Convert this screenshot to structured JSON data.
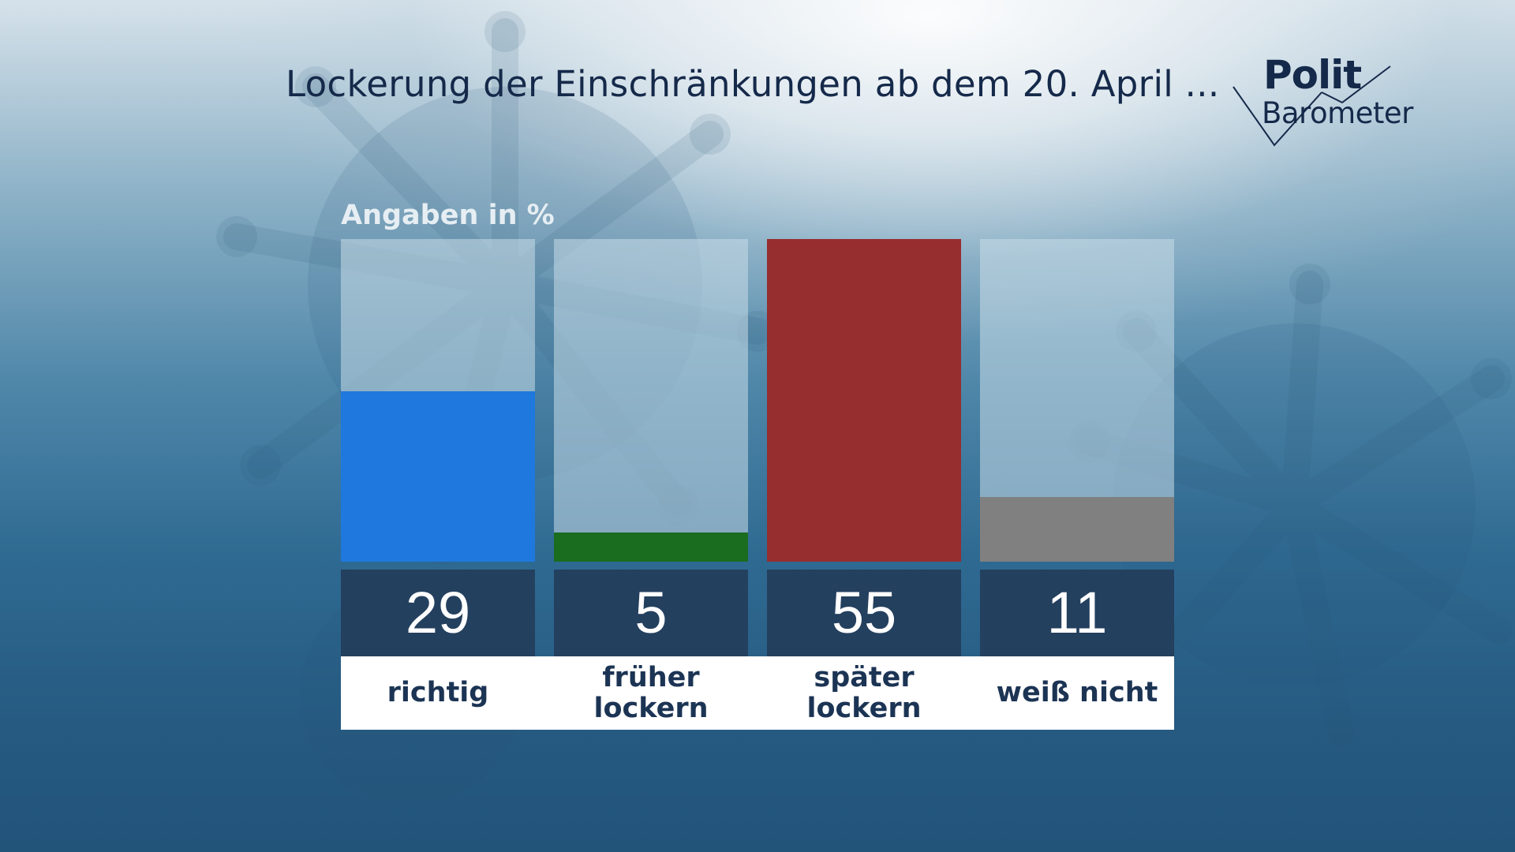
{
  "title": "Lockerung der Einschränkungen ab dem 20. April ...",
  "logo": {
    "line1": "Polit",
    "line2": "Barometer"
  },
  "colors": {
    "richtig": "#1f78dd",
    "frueher": "#1a6c1f",
    "spaeter": "#962d2f",
    "weiss_nicht": "#808080",
    "value_box": "#24405f",
    "title_text": "#15294a"
  },
  "chart_data": {
    "type": "bar",
    "ylabel": "Angaben in %",
    "ylim": [
      0,
      55
    ],
    "grid": false,
    "categories": [
      "richtig",
      "früher\nlockern",
      "später\nlockern",
      "weiß nicht"
    ],
    "values": [
      29,
      5,
      55,
      11
    ],
    "value_labels": [
      "29",
      "5",
      "55",
      "11"
    ],
    "bar_colors": [
      "#1f78dd",
      "#1a6c1f",
      "#962d2f",
      "#808080"
    ]
  }
}
